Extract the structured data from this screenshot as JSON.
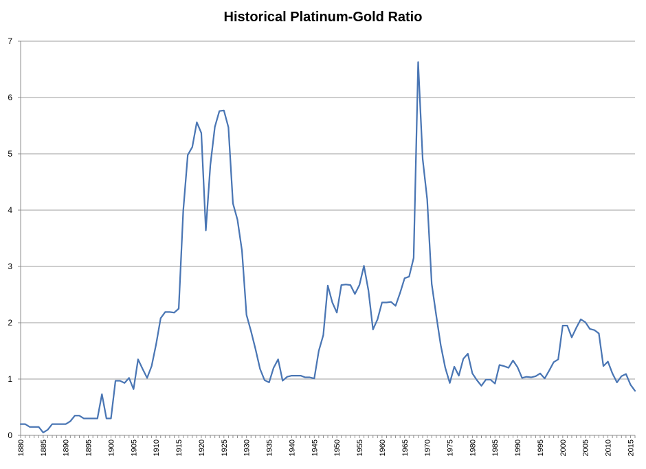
{
  "chart_data": {
    "type": "line",
    "title": "Historical Platinum-Gold Ratio",
    "xlabel": "",
    "ylabel": "",
    "ylim": [
      0,
      7
    ],
    "xlim": [
      1880,
      2016
    ],
    "grid": true,
    "yticks": [
      "0",
      "1",
      "2",
      "3",
      "4",
      "5",
      "6",
      "7"
    ],
    "xticks": [
      "1880",
      "1885",
      "1890",
      "1895",
      "1900",
      "1905",
      "1910",
      "1915",
      "1920",
      "1925",
      "1930",
      "1935",
      "1940",
      "1945",
      "1950",
      "1955",
      "1960",
      "1965",
      "1970",
      "1975",
      "1980",
      "1985",
      "1990",
      "1995",
      "2000",
      "2005",
      "2010",
      "2015"
    ],
    "colors": {
      "line": "#4a76b4",
      "grid": "#9e9e9e",
      "axis": "#8c8c8c"
    },
    "series": [
      {
        "x": [
          1880,
          1881,
          1882,
          1883,
          1884,
          1885,
          1886,
          1887,
          1888,
          1889,
          1890,
          1891,
          1892,
          1893,
          1894,
          1895,
          1896,
          1897,
          1898,
          1899,
          1900,
          1901,
          1902,
          1903,
          1904,
          1905,
          1906,
          1907,
          1908,
          1909,
          1910,
          1911,
          1912,
          1913,
          1914,
          1915,
          1916,
          1917,
          1918,
          1919,
          1920,
          1921,
          1922,
          1923,
          1924,
          1925,
          1926,
          1927,
          1928,
          1929,
          1930,
          1931,
          1932,
          1933,
          1934,
          1935,
          1936,
          1937,
          1938,
          1939,
          1940,
          1941,
          1942,
          1943,
          1944,
          1945,
          1946,
          1947,
          1948,
          1949,
          1950,
          1951,
          1952,
          1953,
          1954,
          1955,
          1956,
          1957,
          1958,
          1959,
          1960,
          1961,
          1962,
          1963,
          1964,
          1965,
          1966,
          1967,
          1968,
          1969,
          1970,
          1971,
          1972,
          1973,
          1974,
          1975,
          1976,
          1977,
          1978,
          1979,
          1980,
          1981,
          1982,
          1983,
          1984,
          1985,
          1986,
          1987,
          1988,
          1989,
          1990,
          1991,
          1992,
          1993,
          1994,
          1995,
          1996,
          1997,
          1998,
          1999,
          2000,
          2001,
          2002,
          2003,
          2004,
          2005,
          2006,
          2007,
          2008,
          2009,
          2010,
          2011,
          2012,
          2013,
          2014,
          2015,
          2016
        ],
        "values": [
          0.2,
          0.2,
          0.15,
          0.15,
          0.15,
          0.05,
          0.1,
          0.2,
          0.2,
          0.2,
          0.2,
          0.25,
          0.35,
          0.35,
          0.3,
          0.3,
          0.3,
          0.3,
          0.73,
          0.3,
          0.3,
          0.97,
          0.97,
          0.93,
          1.02,
          0.82,
          1.35,
          1.18,
          1.02,
          1.23,
          1.62,
          2.08,
          2.19,
          2.19,
          2.18,
          2.25,
          3.99,
          4.98,
          5.12,
          5.56,
          5.37,
          3.64,
          4.8,
          5.48,
          5.76,
          5.77,
          5.47,
          4.12,
          3.83,
          3.28,
          2.14,
          1.85,
          1.53,
          1.18,
          0.98,
          0.94,
          1.2,
          1.35,
          0.97,
          1.04,
          1.06,
          1.06,
          1.06,
          1.03,
          1.03,
          1.01,
          1.5,
          1.78,
          2.66,
          2.36,
          2.18,
          2.67,
          2.68,
          2.67,
          2.51,
          2.67,
          3.01,
          2.57,
          1.88,
          2.06,
          2.36,
          2.36,
          2.37,
          2.3,
          2.53,
          2.79,
          2.82,
          3.15,
          6.63,
          4.91,
          4.19,
          2.69,
          2.13,
          1.6,
          1.2,
          0.93,
          1.22,
          1.06,
          1.36,
          1.45,
          1.1,
          0.98,
          0.88,
          0.99,
          0.99,
          0.92,
          1.25,
          1.23,
          1.2,
          1.33,
          1.21,
          1.02,
          1.04,
          1.03,
          1.05,
          1.1,
          1.01,
          1.15,
          1.3,
          1.35,
          1.95,
          1.95,
          1.74,
          1.91,
          2.06,
          2.01,
          1.89,
          1.87,
          1.81,
          1.23,
          1.31,
          1.1,
          0.94,
          1.05,
          1.09,
          0.9,
          0.79
        ]
      }
    ]
  }
}
